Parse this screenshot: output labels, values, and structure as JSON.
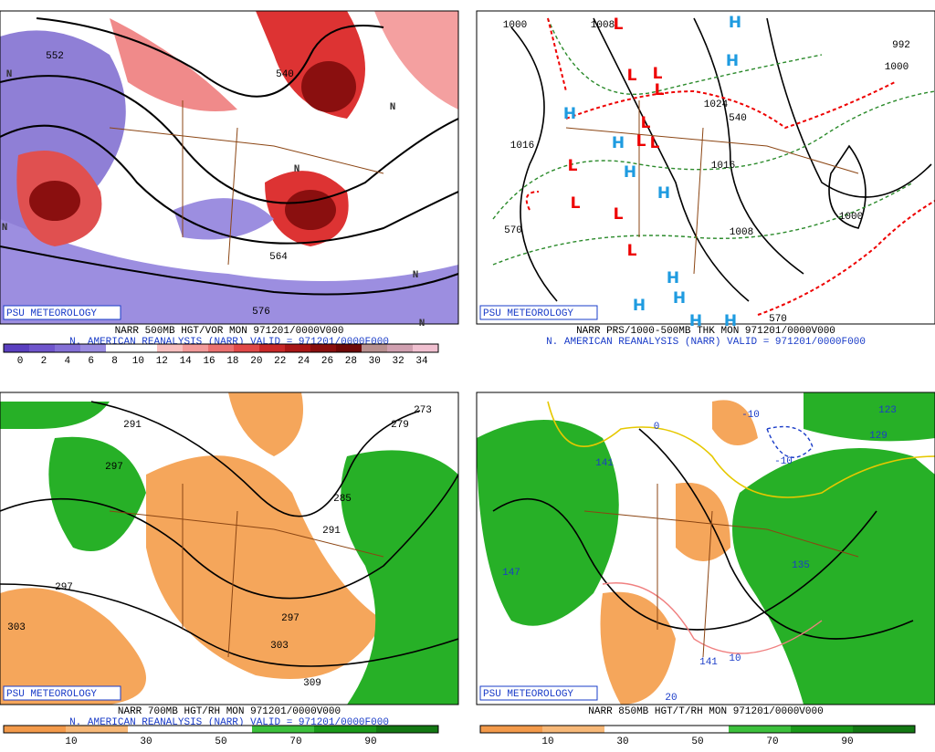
{
  "panels": [
    {
      "badge": "PSU METEOROLOGY",
      "line1": "NARR 500MB HGT/VOR MON 971201/0000V000",
      "line2": "N. AMERICAN REANALYSIS (NARR) VALID = 971201/0000F000",
      "colorbar": [
        0,
        2,
        4,
        6,
        8,
        10,
        12,
        14,
        16,
        18,
        20,
        22,
        24,
        26,
        28,
        30,
        32,
        34
      ],
      "contour_labels": [
        "552",
        "540",
        "564",
        "576"
      ],
      "symbols": [
        "N",
        "N",
        "N",
        "N",
        "N",
        "N"
      ]
    },
    {
      "badge": "PSU METEOROLOGY",
      "line1": "NARR PRS/1000-500MB THK MON 971201/0000V000",
      "line2": "N. AMERICAN REANALYSIS (NARR) VALID = 971201/0000F000",
      "contour_labels": [
        "1000",
        "1016",
        "1008",
        "1024",
        "540",
        "570",
        "1016",
        "1008",
        "1000",
        "992",
        "1000",
        "570"
      ],
      "symbols": [
        "L",
        "L",
        "L",
        "L",
        "L",
        "L",
        "L",
        "L",
        "L",
        "L",
        "L",
        "H",
        "H",
        "H",
        "H",
        "H",
        "H",
        "H",
        "H",
        "H",
        "H",
        "H"
      ]
    },
    {
      "badge": "PSU METEOROLOGY",
      "line1": "NARR 700MB HGT/RH MON 971201/0000V000",
      "line2": "N. AMERICAN REANALYSIS (NARR) VALID = 971201/0000F000",
      "colorbar": [
        10,
        30,
        50,
        70,
        90
      ],
      "contour_labels": [
        "291",
        "297",
        "297",
        "303",
        "285",
        "291",
        "297",
        "303",
        "309",
        "279",
        "273"
      ],
      "symbols": []
    },
    {
      "badge": "PSU METEOROLOGY",
      "line1": "NARR 850MB HGT/T/RH MON 971201/0000V000",
      "colorbar": [
        10,
        30,
        50,
        70,
        90
      ],
      "contour_labels": [
        "0",
        "-10",
        "-10",
        "141",
        "147",
        "135",
        "123",
        "129",
        "141",
        "10",
        "20"
      ],
      "symbols": []
    }
  ]
}
